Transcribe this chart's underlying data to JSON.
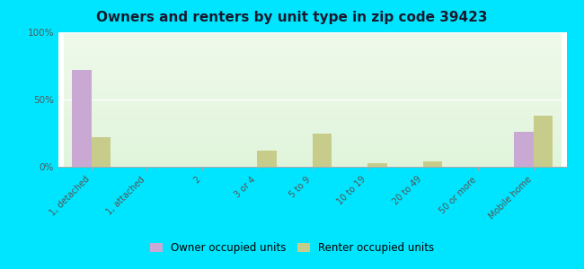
{
  "title": "Owners and renters by unit type in zip code 39423",
  "categories": [
    "1, detached",
    "1, attached",
    "2",
    "3 or 4",
    "5 to 9",
    "10 to 19",
    "20 to 49",
    "50 or more",
    "Mobile home"
  ],
  "owner_values": [
    72,
    0,
    0,
    0,
    0,
    0,
    0,
    0,
    26
  ],
  "renter_values": [
    22,
    0,
    0,
    12,
    25,
    3,
    4,
    0,
    38
  ],
  "owner_color": "#c9a8d4",
  "renter_color": "#c8cc8a",
  "outer_bg": "#00e5ff",
  "ylim": [
    0,
    100
  ],
  "yticks": [
    0,
    50,
    100
  ],
  "ytick_labels": [
    "0%",
    "50%",
    "100%"
  ],
  "bar_width": 0.35,
  "legend_owner": "Owner occupied units",
  "legend_renter": "Renter occupied units",
  "title_fontsize": 11,
  "tick_fontsize": 7,
  "legend_fontsize": 8.5
}
